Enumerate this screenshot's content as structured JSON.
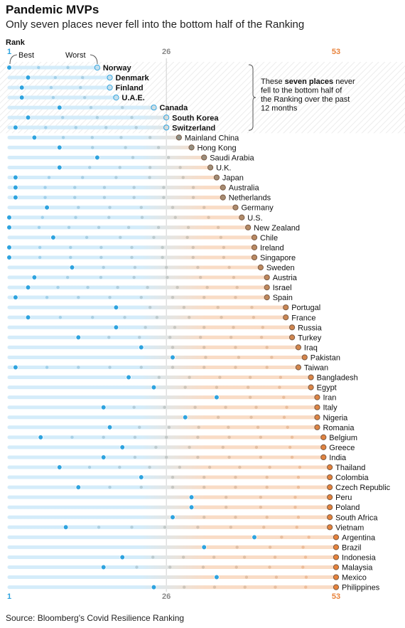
{
  "title": "Pandemic MVPs",
  "subtitle": "Only seven places never fell into the bottom half of the Ranking",
  "source": "Source: Bloomberg's Covid Resilience Ranking",
  "annotation": {
    "lines": [
      "These seven places never",
      "fell to the bottom half of",
      "the Ranking over the past",
      "12 months"
    ],
    "bold_phrase": "seven places"
  },
  "colors": {
    "best": "#2ea3df",
    "worst": "#e8823a",
    "track_blue": "#d4ecfa",
    "track_orange": "#f9dcc6",
    "current_mid": "#d9b8a3",
    "tick_blue": "#2ea3df",
    "tick_mid": "#888888",
    "tick_orange": "#e8823a"
  },
  "chart_data": {
    "type": "scatter",
    "title": "Pandemic MVPs",
    "subtitle": "Only seven places never fell into the bottom half of the Ranking",
    "xlabel": "Rank",
    "x_ticks": [
      1,
      26,
      53
    ],
    "xlim": [
      1,
      53
    ],
    "legend": {
      "best_label": "Best",
      "worst_label": "Worst"
    },
    "series": [
      {
        "name": "Norway",
        "best": 1,
        "worst": 15,
        "current": 15,
        "highlight": true
      },
      {
        "name": "Denmark",
        "best": 4,
        "worst": 17,
        "current": 17,
        "highlight": true
      },
      {
        "name": "Finland",
        "best": 3,
        "worst": 17,
        "current": 17,
        "highlight": true
      },
      {
        "name": "U.A.E.",
        "best": 3,
        "worst": 18,
        "current": 18,
        "highlight": true
      },
      {
        "name": "Canada",
        "best": 9,
        "worst": 24,
        "current": 24,
        "highlight": true
      },
      {
        "name": "South Korea",
        "best": 4,
        "worst": 26,
        "current": 26,
        "highlight": true
      },
      {
        "name": "Switzerland",
        "best": 2,
        "worst": 26,
        "current": 26,
        "highlight": true
      },
      {
        "name": "Mainland China",
        "best": 5,
        "worst": 28,
        "current": 28
      },
      {
        "name": "Hong Kong",
        "best": 9,
        "worst": 30,
        "current": 30
      },
      {
        "name": "Saudi Arabia",
        "best": 15,
        "worst": 32,
        "current": 32
      },
      {
        "name": "U.K.",
        "best": 9,
        "worst": 33,
        "current": 33
      },
      {
        "name": "Japan",
        "best": 2,
        "worst": 34,
        "current": 34
      },
      {
        "name": "Australia",
        "best": 2,
        "worst": 35,
        "current": 35
      },
      {
        "name": "Netherlands",
        "best": 2,
        "worst": 35,
        "current": 35
      },
      {
        "name": "Germany",
        "best": 7,
        "worst": 37,
        "current": 37
      },
      {
        "name": "U.S.",
        "best": 1,
        "worst": 38,
        "current": 38
      },
      {
        "name": "New Zealand",
        "best": 1,
        "worst": 39,
        "current": 39
      },
      {
        "name": "Chile",
        "best": 8,
        "worst": 40,
        "current": 40
      },
      {
        "name": "Ireland",
        "best": 1,
        "worst": 40,
        "current": 40
      },
      {
        "name": "Singapore",
        "best": 1,
        "worst": 40,
        "current": 40
      },
      {
        "name": "Sweden",
        "best": 11,
        "worst": 41,
        "current": 41
      },
      {
        "name": "Austria",
        "best": 5,
        "worst": 42,
        "current": 42
      },
      {
        "name": "Israel",
        "best": 4,
        "worst": 42,
        "current": 42
      },
      {
        "name": "Spain",
        "best": 2,
        "worst": 42,
        "current": 42
      },
      {
        "name": "Portugal",
        "best": 18,
        "worst": 45,
        "current": 45
      },
      {
        "name": "France",
        "best": 4,
        "worst": 45,
        "current": 45
      },
      {
        "name": "Russia",
        "best": 18,
        "worst": 46,
        "current": 46
      },
      {
        "name": "Turkey",
        "best": 12,
        "worst": 46,
        "current": 46
      },
      {
        "name": "Iraq",
        "best": 22,
        "worst": 47,
        "current": 47
      },
      {
        "name": "Pakistan",
        "best": 27,
        "worst": 48,
        "current": 48
      },
      {
        "name": "Taiwan",
        "best": 2,
        "worst": 47,
        "current": 47
      },
      {
        "name": "Bangladesh",
        "best": 20,
        "worst": 49,
        "current": 49
      },
      {
        "name": "Egypt",
        "best": 24,
        "worst": 49,
        "current": 49
      },
      {
        "name": "Iran",
        "best": 34,
        "worst": 50,
        "current": 50
      },
      {
        "name": "Italy",
        "best": 16,
        "worst": 50,
        "current": 50
      },
      {
        "name": "Nigeria",
        "best": 29,
        "worst": 50,
        "current": 50
      },
      {
        "name": "Romania",
        "best": 17,
        "worst": 50,
        "current": 50
      },
      {
        "name": "Belgium",
        "best": 6,
        "worst": 51,
        "current": 51
      },
      {
        "name": "Greece",
        "best": 19,
        "worst": 51,
        "current": 51
      },
      {
        "name": "India",
        "best": 16,
        "worst": 51,
        "current": 51
      },
      {
        "name": "Thailand",
        "best": 9,
        "worst": 52,
        "current": 52
      },
      {
        "name": "Colombia",
        "best": 22,
        "worst": 52,
        "current": 52
      },
      {
        "name": "Czech Republic",
        "best": 12,
        "worst": 52,
        "current": 52
      },
      {
        "name": "Peru",
        "best": 30,
        "worst": 52,
        "current": 52
      },
      {
        "name": "Poland",
        "best": 30,
        "worst": 52,
        "current": 52
      },
      {
        "name": "South Africa",
        "best": 27,
        "worst": 52,
        "current": 52
      },
      {
        "name": "Vietnam",
        "best": 10,
        "worst": 52,
        "current": 52
      },
      {
        "name": "Argentina",
        "best": 40,
        "worst": 53,
        "current": 53
      },
      {
        "name": "Brazil",
        "best": 32,
        "worst": 53,
        "current": 53
      },
      {
        "name": "Indonesia",
        "best": 19,
        "worst": 53,
        "current": 53
      },
      {
        "name": "Malaysia",
        "best": 16,
        "worst": 53,
        "current": 53
      },
      {
        "name": "Mexico",
        "best": 34,
        "worst": 53,
        "current": 53
      },
      {
        "name": "Philippines",
        "best": 24,
        "worst": 53,
        "current": 53
      }
    ]
  }
}
